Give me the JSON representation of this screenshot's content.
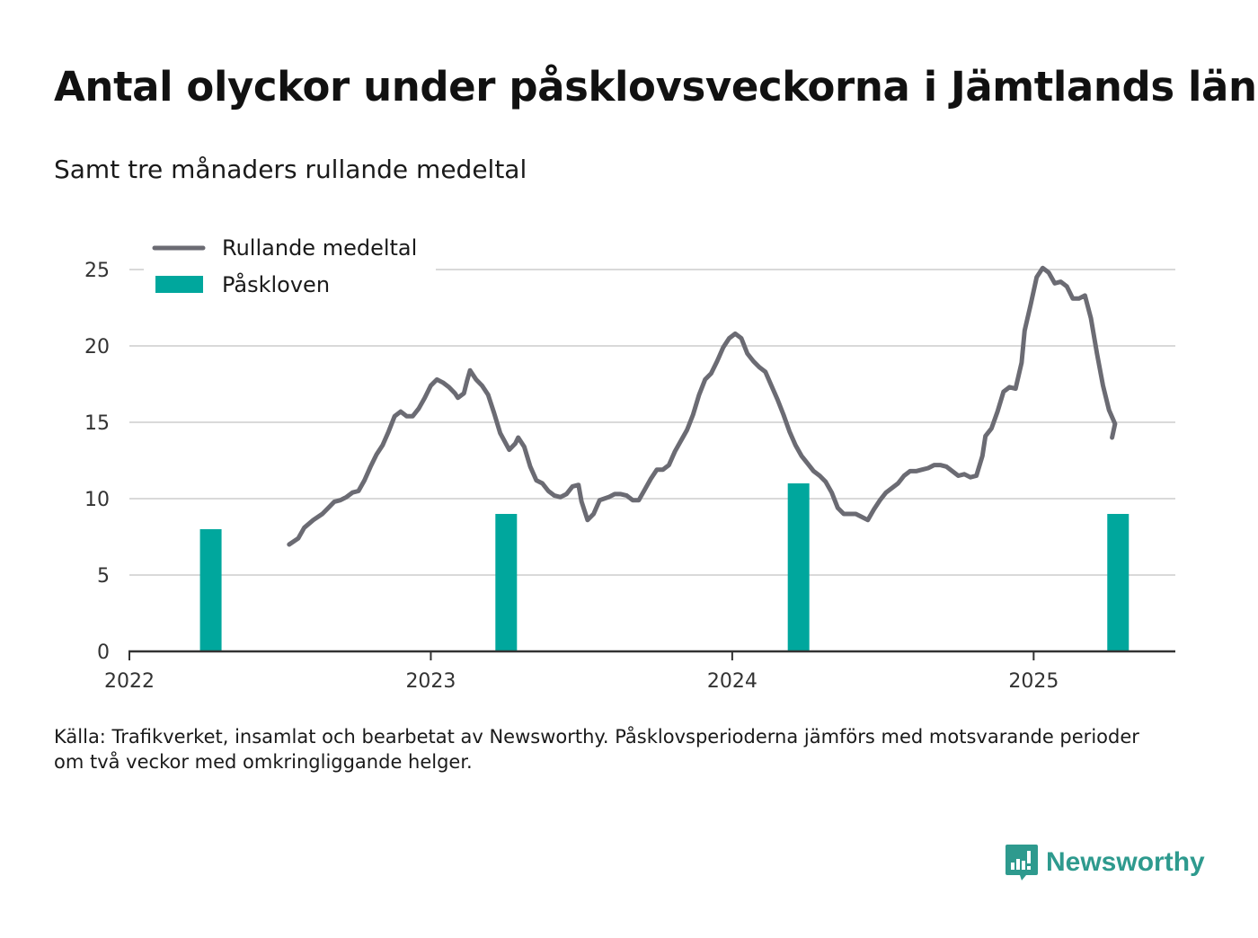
{
  "title": "Antal olyckor under påsklovsveckorna i Jämtlands län",
  "subtitle": "Samt tre månaders rullande medeltal",
  "source_lines": [
    "Källa: Trafikverket, insamlat och bearbetat av Newsworthy. Påsklovsperioderna jämförs med motsvarande perioder",
    "om två veckor med omkringliggande helger."
  ],
  "logo_text": "Newsworthy",
  "logo_icon": "newsworthy-chart-bubble-icon",
  "colors": {
    "line": "#6b6b73",
    "bar": "#00a79d",
    "grid": "#d9d9d9",
    "axis": "#333333",
    "logo": "#2e9a8e"
  },
  "chart_data": {
    "type": "bar+line",
    "ylim": [
      0,
      25
    ],
    "yticks": [
      0,
      5,
      10,
      15,
      20,
      25
    ],
    "xlim": [
      2022.0,
      2025.47
    ],
    "xticks": [
      2022,
      2023,
      2024,
      2025
    ],
    "grid": true,
    "legend_position": "top-left",
    "series": [
      {
        "name": "Rullande medeltal",
        "type": "line",
        "points": [
          [
            2022.53,
            7.0
          ],
          [
            2022.56,
            7.4
          ],
          [
            2022.58,
            8.1
          ],
          [
            2022.61,
            8.6
          ],
          [
            2022.64,
            9.0
          ],
          [
            2022.66,
            9.4
          ],
          [
            2022.68,
            9.8
          ],
          [
            2022.7,
            9.9
          ],
          [
            2022.72,
            10.1
          ],
          [
            2022.74,
            10.4
          ],
          [
            2022.76,
            10.5
          ],
          [
            2022.78,
            11.2
          ],
          [
            2022.8,
            12.1
          ],
          [
            2022.82,
            12.9
          ],
          [
            2022.84,
            13.5
          ],
          [
            2022.86,
            14.4
          ],
          [
            2022.88,
            15.4
          ],
          [
            2022.9,
            15.7
          ],
          [
            2022.92,
            15.4
          ],
          [
            2022.94,
            15.4
          ],
          [
            2022.96,
            15.9
          ],
          [
            2022.98,
            16.6
          ],
          [
            2023.0,
            17.4
          ],
          [
            2023.02,
            17.8
          ],
          [
            2023.04,
            17.6
          ],
          [
            2023.06,
            17.3
          ],
          [
            2023.08,
            16.9
          ],
          [
            2023.09,
            16.6
          ],
          [
            2023.11,
            16.9
          ],
          [
            2023.12,
            17.7
          ],
          [
            2023.13,
            18.4
          ],
          [
            2023.15,
            17.8
          ],
          [
            2023.17,
            17.4
          ],
          [
            2023.19,
            16.8
          ],
          [
            2023.21,
            15.6
          ],
          [
            2023.23,
            14.3
          ],
          [
            2023.26,
            13.2
          ],
          [
            2023.28,
            13.6
          ],
          [
            2023.29,
            14.0
          ],
          [
            2023.31,
            13.4
          ],
          [
            2023.33,
            12.1
          ],
          [
            2023.35,
            11.2
          ],
          [
            2023.37,
            11.0
          ],
          [
            2023.39,
            10.5
          ],
          [
            2023.41,
            10.2
          ],
          [
            2023.43,
            10.1
          ],
          [
            2023.45,
            10.3
          ],
          [
            2023.47,
            10.8
          ],
          [
            2023.49,
            10.9
          ],
          [
            2023.5,
            9.8
          ],
          [
            2023.52,
            8.6
          ],
          [
            2023.54,
            9.0
          ],
          [
            2023.56,
            9.9
          ],
          [
            2023.59,
            10.1
          ],
          [
            2023.61,
            10.3
          ],
          [
            2023.63,
            10.3
          ],
          [
            2023.65,
            10.2
          ],
          [
            2023.67,
            9.9
          ],
          [
            2023.69,
            9.9
          ],
          [
            2023.71,
            10.6
          ],
          [
            2023.73,
            11.3
          ],
          [
            2023.75,
            11.9
          ],
          [
            2023.77,
            11.9
          ],
          [
            2023.79,
            12.2
          ],
          [
            2023.81,
            13.1
          ],
          [
            2023.83,
            13.8
          ],
          [
            2023.85,
            14.5
          ],
          [
            2023.87,
            15.5
          ],
          [
            2023.89,
            16.8
          ],
          [
            2023.91,
            17.8
          ],
          [
            2023.93,
            18.2
          ],
          [
            2023.95,
            19.0
          ],
          [
            2023.97,
            19.9
          ],
          [
            2023.99,
            20.5
          ],
          [
            2024.01,
            20.8
          ],
          [
            2024.03,
            20.5
          ],
          [
            2024.05,
            19.5
          ],
          [
            2024.07,
            19.0
          ],
          [
            2024.09,
            18.6
          ],
          [
            2024.11,
            18.3
          ],
          [
            2024.13,
            17.4
          ],
          [
            2024.15,
            16.5
          ],
          [
            2024.17,
            15.5
          ],
          [
            2024.19,
            14.4
          ],
          [
            2024.21,
            13.5
          ],
          [
            2024.23,
            12.8
          ],
          [
            2024.25,
            12.3
          ],
          [
            2024.27,
            11.8
          ],
          [
            2024.29,
            11.5
          ],
          [
            2024.31,
            11.1
          ],
          [
            2024.33,
            10.4
          ],
          [
            2024.35,
            9.4
          ],
          [
            2024.37,
            9.0
          ],
          [
            2024.39,
            9.0
          ],
          [
            2024.41,
            9.0
          ],
          [
            2024.43,
            8.8
          ],
          [
            2024.45,
            8.6
          ],
          [
            2024.47,
            9.3
          ],
          [
            2024.49,
            9.9
          ],
          [
            2024.51,
            10.4
          ],
          [
            2024.53,
            10.7
          ],
          [
            2024.55,
            11.0
          ],
          [
            2024.57,
            11.5
          ],
          [
            2024.59,
            11.8
          ],
          [
            2024.61,
            11.8
          ],
          [
            2024.63,
            11.9
          ],
          [
            2024.65,
            12.0
          ],
          [
            2024.67,
            12.2
          ],
          [
            2024.69,
            12.2
          ],
          [
            2024.71,
            12.1
          ],
          [
            2024.73,
            11.8
          ],
          [
            2024.75,
            11.5
          ],
          [
            2024.77,
            11.6
          ],
          [
            2024.79,
            11.4
          ],
          [
            2024.81,
            11.5
          ],
          [
            2024.83,
            12.8
          ],
          [
            2024.84,
            14.1
          ],
          [
            2024.86,
            14.6
          ],
          [
            2024.88,
            15.7
          ],
          [
            2024.9,
            17.0
          ],
          [
            2024.92,
            17.3
          ],
          [
            2024.94,
            17.2
          ],
          [
            2024.96,
            18.9
          ],
          [
            2024.97,
            21.0
          ],
          [
            2024.99,
            22.7
          ],
          [
            2025.01,
            24.5
          ],
          [
            2025.03,
            25.1
          ],
          [
            2025.05,
            24.8
          ],
          [
            2025.07,
            24.1
          ],
          [
            2025.09,
            24.2
          ],
          [
            2025.11,
            23.9
          ],
          [
            2025.13,
            23.1
          ],
          [
            2025.15,
            23.1
          ],
          [
            2025.17,
            23.3
          ],
          [
            2025.19,
            21.8
          ],
          [
            2025.21,
            19.5
          ],
          [
            2025.23,
            17.4
          ],
          [
            2025.25,
            15.8
          ],
          [
            2025.27,
            14.9
          ],
          [
            2025.26,
            14.0
          ]
        ]
      },
      {
        "name": "Påskloven",
        "type": "bar",
        "points": [
          [
            2022.27,
            8
          ],
          [
            2023.25,
            9
          ],
          [
            2024.22,
            11
          ],
          [
            2025.28,
            9
          ]
        ]
      }
    ]
  }
}
